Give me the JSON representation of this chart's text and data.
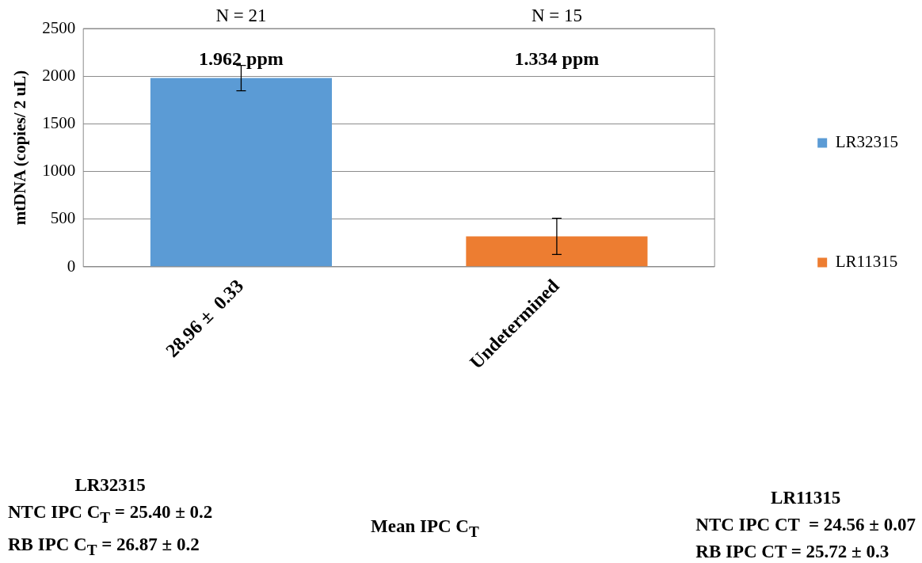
{
  "chart_data": {
    "type": "bar",
    "ylabel": "mtDNA (copies/ 2 uL)",
    "categories": [
      "28.96 ±  0.33",
      "Undetermined"
    ],
    "series": [
      {
        "name": "LR32315",
        "color": "#5b9bd5",
        "values": [
          1980,
          null
        ],
        "errors": [
          133,
          null
        ]
      },
      {
        "name": "LR11315",
        "color": "#ed7d31",
        "values": [
          null,
          320
        ],
        "errors": [
          null,
          190
        ]
      }
    ],
    "ylim": [
      0,
      2500
    ],
    "yticks": [
      0,
      500,
      1000,
      1500,
      2000,
      2500
    ],
    "grid": "y",
    "legend": "right",
    "annotations": [
      "N = 21",
      "N = 15",
      "1.962 ppm",
      "1.334 ppm",
      "LR32315\nNTC IPC C$_{T}$ = 25.40 ± 0.2\nRB IPC C$_{T}$ = 26.87 ± 0.2",
      "LR11315\nNTC IPC CT  = 24.56 ± 0.07\nRB IPC CT = 25.72 ± 0.3",
      "Mean IPC C$_{T}$"
    ]
  }
}
